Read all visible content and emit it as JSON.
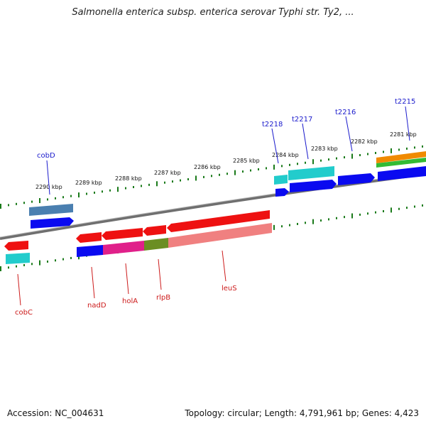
{
  "title": "Salmonella enterica subsp. enterica serovar Typhi str. Ty2, ...",
  "footer": {
    "accession_prefix": "Accession:",
    "accession_value": "NC_004631",
    "topology_text": "Topology: circular; Length: 4,791,961 bp; Genes: 4,423"
  },
  "scale_labels": [
    "2290 kbp",
    "2289 kbp",
    "2288 kbp",
    "2287 kbp",
    "2286 kbp",
    "2285 kbp",
    "2284 kbp",
    "2283 kbp",
    "2282 kbp",
    "2281 kbp"
  ],
  "top_gene_labels": [
    "cobD",
    "t2218",
    "t2217",
    "t2216",
    "t2215"
  ],
  "bottom_gene_labels": [
    "cobC",
    "nadD",
    "holA",
    "rlpB",
    "leuS"
  ],
  "colors": {
    "backbone": "#7a7a7a",
    "tick": "#1a7a1a",
    "red": "#ee1111",
    "pink": "#f08080",
    "blue": "#0a0af0",
    "cyan": "#22cccc",
    "steelblue": "#4a7fb0",
    "magenta": "#e0208a",
    "olive": "#6b8e23",
    "orange": "#f08a00",
    "green": "#33bb33"
  }
}
